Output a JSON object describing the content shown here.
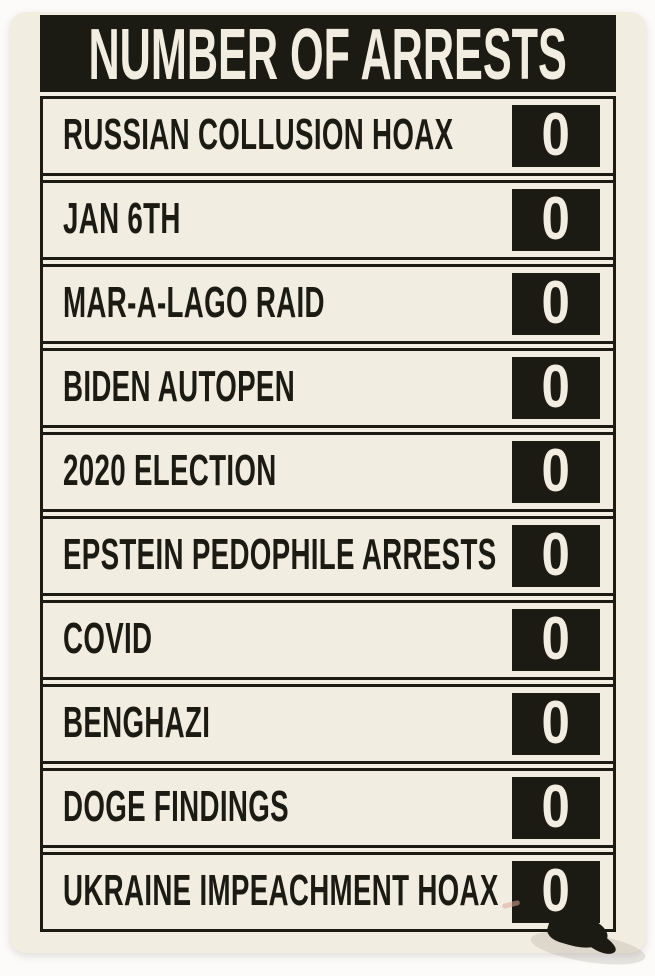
{
  "colors": {
    "ink": "#1b1b13",
    "cream": "#f2ede1",
    "page": "#fcfbf9"
  },
  "chart_data": {
    "type": "table",
    "title": "NUMBER OF ARRESTS",
    "columns": [
      "topic",
      "number_of_arrests"
    ],
    "rows": [
      {
        "label": "RUSSIAN COLLUSION HOAX",
        "value": "0"
      },
      {
        "label": "JAN 6TH",
        "value": "0"
      },
      {
        "label": "MAR-A-LAGO RAID",
        "value": "0"
      },
      {
        "label": "BIDEN AUTOPEN",
        "value": "0"
      },
      {
        "label": "2020 ELECTION",
        "value": "0"
      },
      {
        "label": "EPSTEIN PEDOPHILE ARRESTS",
        "value": "0"
      },
      {
        "label": "COVID",
        "value": "0"
      },
      {
        "label": "BENGHAZI",
        "value": "0"
      },
      {
        "label": "DOGE FINDINGS",
        "value": "0"
      },
      {
        "label": "UKRAINE IMPEACHMENT HOAX",
        "value": "0"
      }
    ],
    "layout_hints": {
      "grid": "each row is an individually outlined cell",
      "value_column_style": "black box with light numeral, right-aligned"
    }
  }
}
